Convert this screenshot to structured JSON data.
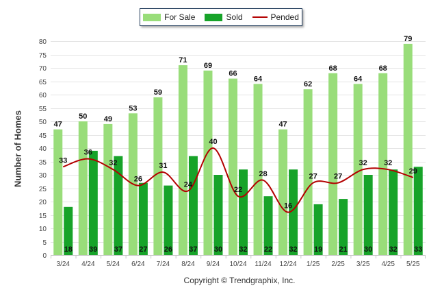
{
  "legend": {
    "for_sale": "For Sale",
    "sold": "Sold",
    "pended": "Pended"
  },
  "footer": "Copyright © Trendgraphix, Inc.",
  "colors": {
    "for_sale": "#99dd7a",
    "sold": "#17a329",
    "pended": "#b30000"
  },
  "chart_data": {
    "type": "bar",
    "ylabel": "Number of Homes",
    "xlabel": "",
    "ylim": [
      0,
      80
    ],
    "yticks": [
      0,
      5,
      10,
      15,
      20,
      25,
      30,
      35,
      40,
      45,
      50,
      55,
      60,
      65,
      70,
      75,
      80
    ],
    "grid": true,
    "legend_position": "top-center",
    "categories": [
      "3/24",
      "4/24",
      "5/24",
      "6/24",
      "7/24",
      "8/24",
      "9/24",
      "10/24",
      "11/24",
      "12/24",
      "1/25",
      "2/25",
      "3/25",
      "4/25",
      "5/25"
    ],
    "series": [
      {
        "name": "For Sale",
        "type": "bar",
        "values": [
          47,
          50,
          49,
          53,
          59,
          71,
          69,
          66,
          64,
          47,
          62,
          68,
          64,
          68,
          79
        ]
      },
      {
        "name": "Sold",
        "type": "bar",
        "values": [
          18,
          39,
          37,
          27,
          26,
          37,
          30,
          32,
          22,
          32,
          19,
          21,
          30,
          32,
          33
        ]
      },
      {
        "name": "Pended",
        "type": "line",
        "values": [
          33,
          36,
          32,
          26,
          31,
          24,
          40,
          22,
          28,
          16,
          27,
          27,
          32,
          32,
          29
        ]
      }
    ]
  }
}
